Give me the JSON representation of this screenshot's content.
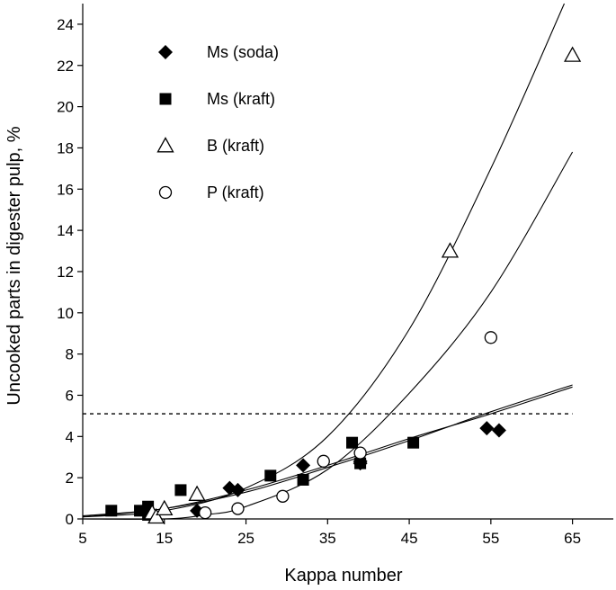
{
  "chart_data": {
    "type": "scatter",
    "xlabel": "Kappa number",
    "ylabel": "Uncooked parts in digester pulp, %",
    "xlim": [
      5,
      70
    ],
    "ylim": [
      0,
      25
    ],
    "xticks": [
      5,
      15,
      25,
      35,
      45,
      55,
      65
    ],
    "yticks": [
      0,
      2,
      4,
      6,
      8,
      10,
      12,
      14,
      16,
      18,
      20,
      22,
      24
    ],
    "reference_line": {
      "y": 5.1,
      "style": "dashed",
      "x_range": [
        5,
        65
      ]
    },
    "series": [
      {
        "name": "Ms (soda)",
        "marker": "diamond-filled",
        "points": [
          [
            13,
            0.3
          ],
          [
            19,
            0.4
          ],
          [
            23,
            1.5
          ],
          [
            24,
            1.4
          ],
          [
            32,
            2.6
          ],
          [
            39,
            2.8
          ],
          [
            39,
            2.7
          ],
          [
            54.5,
            4.4
          ],
          [
            56,
            4.3
          ]
        ]
      },
      {
        "name": "Ms (kraft)",
        "marker": "square-filled",
        "points": [
          [
            8.5,
            0.4
          ],
          [
            12,
            0.4
          ],
          [
            13,
            0.6
          ],
          [
            13,
            0.2
          ],
          [
            17,
            1.4
          ],
          [
            28,
            2.1
          ],
          [
            32,
            1.9
          ],
          [
            38,
            3.7
          ],
          [
            39,
            2.7
          ],
          [
            45.5,
            3.7
          ]
        ]
      },
      {
        "name": "B (kraft)",
        "marker": "triangle-open",
        "points": [
          [
            13.5,
            0.3
          ],
          [
            14,
            0.1
          ],
          [
            15,
            0.5
          ],
          [
            19,
            1.2
          ],
          [
            50,
            13.0
          ],
          [
            65,
            22.5
          ]
        ]
      },
      {
        "name": "P (kraft)",
        "marker": "circle-open",
        "points": [
          [
            20,
            0.3
          ],
          [
            24,
            0.5
          ],
          [
            29.5,
            1.1
          ],
          [
            34.5,
            2.8
          ],
          [
            39,
            3.2
          ],
          [
            55,
            8.8
          ]
        ]
      }
    ],
    "fit_curves": [
      {
        "name": "B fit",
        "points": [
          [
            5,
            0.1
          ],
          [
            15,
            0.4
          ],
          [
            25,
            1.5
          ],
          [
            35,
            4.0
          ],
          [
            45,
            9.2
          ],
          [
            55,
            17.0
          ],
          [
            64,
            25.0
          ]
        ]
      },
      {
        "name": "P fit",
        "points": [
          [
            5,
            0.0
          ],
          [
            15,
            0.0
          ],
          [
            20,
            0.2
          ],
          [
            25,
            0.6
          ],
          [
            35,
            2.4
          ],
          [
            45,
            6.1
          ],
          [
            55,
            11.0
          ],
          [
            65,
            17.8
          ]
        ]
      },
      {
        "name": "Ms soda fit",
        "points": [
          [
            5,
            0.15
          ],
          [
            15,
            0.5
          ],
          [
            25,
            1.3
          ],
          [
            35,
            2.5
          ],
          [
            45,
            3.8
          ],
          [
            55,
            5.2
          ],
          [
            65,
            6.5
          ]
        ]
      },
      {
        "name": "Ms kraft fit",
        "points": [
          [
            5,
            0.1
          ],
          [
            15,
            0.5
          ],
          [
            25,
            1.4
          ],
          [
            35,
            2.6
          ],
          [
            45,
            3.9
          ],
          [
            55,
            5.1
          ],
          [
            65,
            6.4
          ]
        ]
      }
    ]
  }
}
